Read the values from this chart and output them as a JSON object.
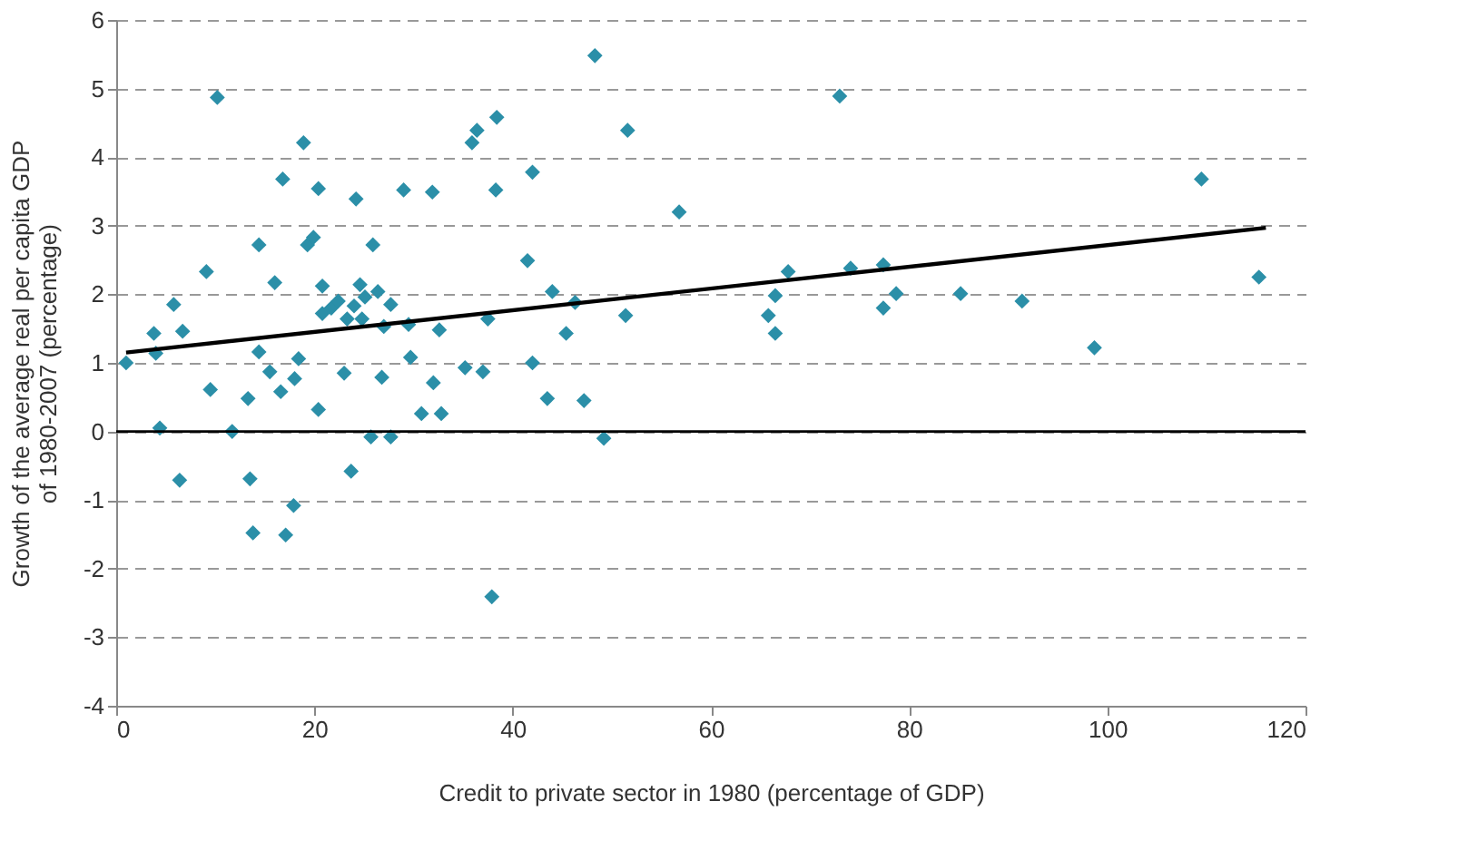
{
  "chart_data": {
    "type": "scatter",
    "xlabel": "Credit  to private sector in 1980 (percentage of GDP)",
    "ylabel": "Growth of the average real per capita GDP\nof 1980-2007 (percentage)",
    "xlim": [
      0,
      120
    ],
    "xticks": [
      0,
      20,
      40,
      60,
      80,
      100,
      120
    ],
    "ylim": [
      -4,
      6
    ],
    "yticks": [
      -4,
      -3,
      -2,
      -1,
      0,
      1,
      2,
      3,
      4,
      5,
      6
    ],
    "grid": "y",
    "series": [
      {
        "type": "scatter",
        "marker": "diamond",
        "color": "#2b8fa8",
        "x": [
          1,
          3.8,
          4,
          4.4,
          5.8,
          6.7,
          6.4,
          9.1,
          9.5,
          10.2,
          11.7,
          13.3,
          13.5,
          13.8,
          14.4,
          14.4,
          15.5,
          16,
          16.6,
          16.8,
          17.1,
          17.9,
          18,
          18.4,
          18.9,
          19.3,
          19.9,
          20.4,
          20.4,
          20.8,
          20.8,
          21.7,
          22.4,
          23,
          23.3,
          23.7,
          24,
          24.2,
          24.6,
          24.8,
          25.1,
          25.7,
          25.9,
          26.4,
          26.8,
          27,
          27.7,
          27.7,
          29,
          29.5,
          29.7,
          30.8,
          31.9,
          32,
          32.6,
          32.8,
          35.2,
          35.9,
          36.4,
          37,
          37.5,
          37.9,
          38.3,
          38.4,
          41.5,
          42,
          42,
          43.5,
          44,
          45.4,
          46.3,
          47.2,
          48.3,
          49.2,
          51.4,
          51.6,
          56.8,
          65.8,
          66.5,
          66.5,
          67.8,
          73,
          74.1,
          77.4,
          77.4,
          78.7,
          85.2,
          91.4,
          98.7,
          109.5,
          115.3
        ],
        "values": [
          1.0,
          1.43,
          1.14,
          0.05,
          1.85,
          1.46,
          -0.71,
          2.33,
          0.61,
          4.87,
          0.0,
          0.48,
          -0.69,
          -1.48,
          2.72,
          1.16,
          0.87,
          2.17,
          0.58,
          3.68,
          -1.51,
          -1.08,
          0.77,
          1.06,
          4.21,
          2.72,
          2.83,
          3.54,
          0.32,
          1.72,
          2.12,
          1.8,
          1.9,
          0.85,
          1.64,
          -0.58,
          1.83,
          3.39,
          2.14,
          1.64,
          1.96,
          -0.08,
          2.72,
          2.04,
          0.79,
          1.53,
          -0.08,
          1.85,
          3.52,
          1.56,
          1.08,
          0.26,
          3.49,
          0.71,
          1.48,
          0.26,
          0.93,
          4.21,
          4.39,
          0.87,
          1.64,
          -2.41,
          3.52,
          4.58,
          2.49,
          3.78,
          1.0,
          0.48,
          2.04,
          1.43,
          1.88,
          0.45,
          5.48,
          -0.1,
          1.69,
          4.39,
          3.2,
          1.69,
          1.98,
          1.43,
          2.33,
          4.89,
          2.38,
          1.8,
          2.43,
          2.01,
          2.01,
          1.9,
          1.22,
          3.68,
          2.25
        ]
      },
      {
        "type": "line",
        "color": "#000000",
        "line_style": "solid",
        "x": [
          1,
          116
        ],
        "values": [
          1.15,
          2.97
        ]
      }
    ],
    "ref_lines": [
      {
        "axis": "y",
        "value": 0,
        "color": "#000000"
      }
    ]
  }
}
